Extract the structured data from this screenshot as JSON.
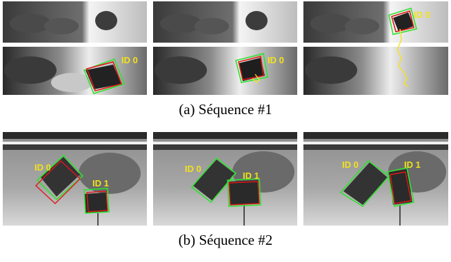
{
  "figure": {
    "caption_a": "(a) Séquence #1",
    "caption_b": "(b) Séquence #2"
  },
  "labels": {
    "id0": "ID 0",
    "id1": "ID 1"
  },
  "colors": {
    "label": "#f2e21a",
    "box_green": "#2ee22e",
    "box_red": "#e01818",
    "trajectory": "#f5e21a"
  }
}
